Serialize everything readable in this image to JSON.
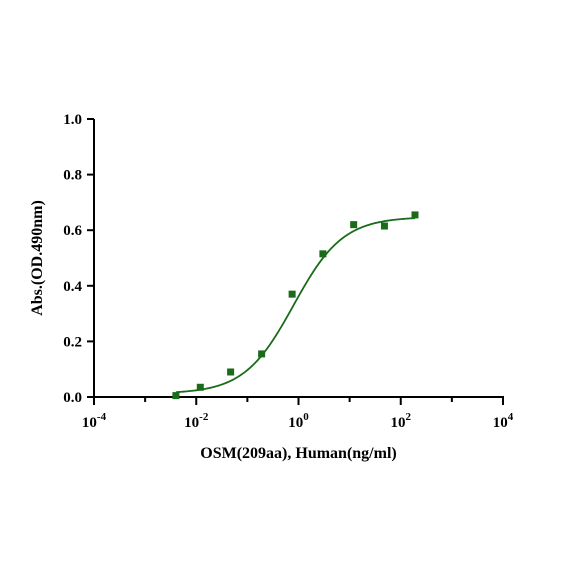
{
  "chart_data": {
    "type": "scatter",
    "title": "",
    "xlabel": "OSM(209aa), Human(ng/ml)",
    "ylabel": "Abs.(OD.490nm)",
    "x_scale": "log10",
    "xlim": [
      0.0001,
      10000
    ],
    "ylim": [
      0.0,
      1.0
    ],
    "grid": false,
    "x_tick_labels": [
      {
        "base": "10",
        "exp": "-4"
      },
      {
        "base": "10",
        "exp": "-2"
      },
      {
        "base": "10",
        "exp": "0"
      },
      {
        "base": "10",
        "exp": "2"
      },
      {
        "base": "10",
        "exp": "4"
      }
    ],
    "y_tick_labels": [
      "0.0",
      "0.2",
      "0.4",
      "0.6",
      "0.8",
      "1.0"
    ],
    "series": [
      {
        "color": "#1a6b1a",
        "marker": "square",
        "points": [
          {
            "x": 0.004,
            "y": 0.005
          },
          {
            "x": 0.012,
            "y": 0.035
          },
          {
            "x": 0.047,
            "y": 0.09
          },
          {
            "x": 0.19,
            "y": 0.155
          },
          {
            "x": 0.75,
            "y": 0.37
          },
          {
            "x": 3.0,
            "y": 0.515
          },
          {
            "x": 12.0,
            "y": 0.62
          },
          {
            "x": 48.0,
            "y": 0.615
          },
          {
            "x": 190.0,
            "y": 0.655
          }
        ],
        "fit": {
          "type": "4PL",
          "color": "#1a6b1a",
          "bottom": 0.012,
          "top": 0.648,
          "ec50": 0.8,
          "hill": 0.9,
          "x_range": [
            0.004,
            190.0
          ]
        }
      }
    ]
  }
}
